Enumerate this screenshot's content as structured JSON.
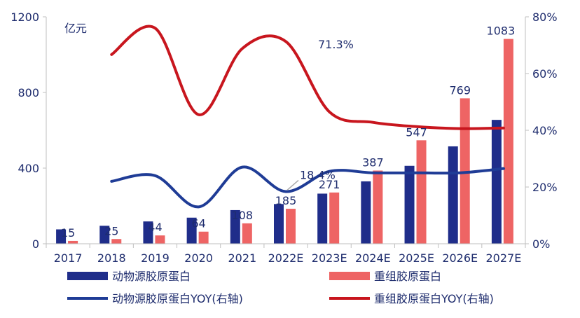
{
  "chart_data": {
    "type": "bar",
    "unit_label": "亿元",
    "categories": [
      "2017",
      "2018",
      "2019",
      "2020",
      "2021",
      "2022E",
      "2023E",
      "2024E",
      "2025E",
      "2026E",
      "2027E"
    ],
    "series": [
      {
        "name": "动物源胶原蛋白",
        "kind": "bar",
        "axis": "left",
        "color": "#1f2d8a",
        "values": [
          76,
          95,
          118,
          138,
          178,
          210,
          265,
          330,
          412,
          515,
          655
        ]
      },
      {
        "name": "重组胶原蛋白",
        "kind": "bar",
        "axis": "left",
        "color": "#ee6464",
        "values": [
          15,
          25,
          44,
          64,
          108,
          185,
          271,
          387,
          547,
          769,
          1083
        ],
        "labels": [
          "15",
          "25",
          "44",
          "64",
          "108",
          "185",
          "271",
          "387",
          "547",
          "769",
          "1083"
        ]
      },
      {
        "name": "动物源胶原蛋白YOY(右轴)",
        "kind": "line",
        "axis": "right",
        "color": "#1f3c96",
        "values": [
          null,
          22,
          24,
          13,
          27,
          18.4,
          25.5,
          25,
          25,
          25,
          26.5
        ]
      },
      {
        "name": "重组胶原蛋白YOY(右轴)",
        "kind": "line",
        "axis": "right",
        "color": "#c8161e",
        "values": [
          null,
          66.7,
          76,
          45.5,
          68.8,
          71.3,
          46.5,
          42.8,
          41.3,
          40.6,
          40.8
        ]
      }
    ],
    "annotations": [
      {
        "text": "71.3%",
        "series": 3,
        "index": 5
      },
      {
        "text": "18.4%",
        "series": 2,
        "index": 5
      }
    ],
    "y_left": {
      "min": 0,
      "max": 1200,
      "ticks": [
        "0",
        "400",
        "800",
        "1200"
      ],
      "tick_values": [
        0,
        400,
        800,
        1200
      ]
    },
    "y_right": {
      "min": 0,
      "max": 80,
      "ticks": [
        "0%",
        "20%",
        "40%",
        "60%",
        "80%"
      ],
      "tick_values": [
        0,
        20,
        40,
        60,
        80
      ]
    },
    "legend_position": "bottom",
    "grid": false
  }
}
